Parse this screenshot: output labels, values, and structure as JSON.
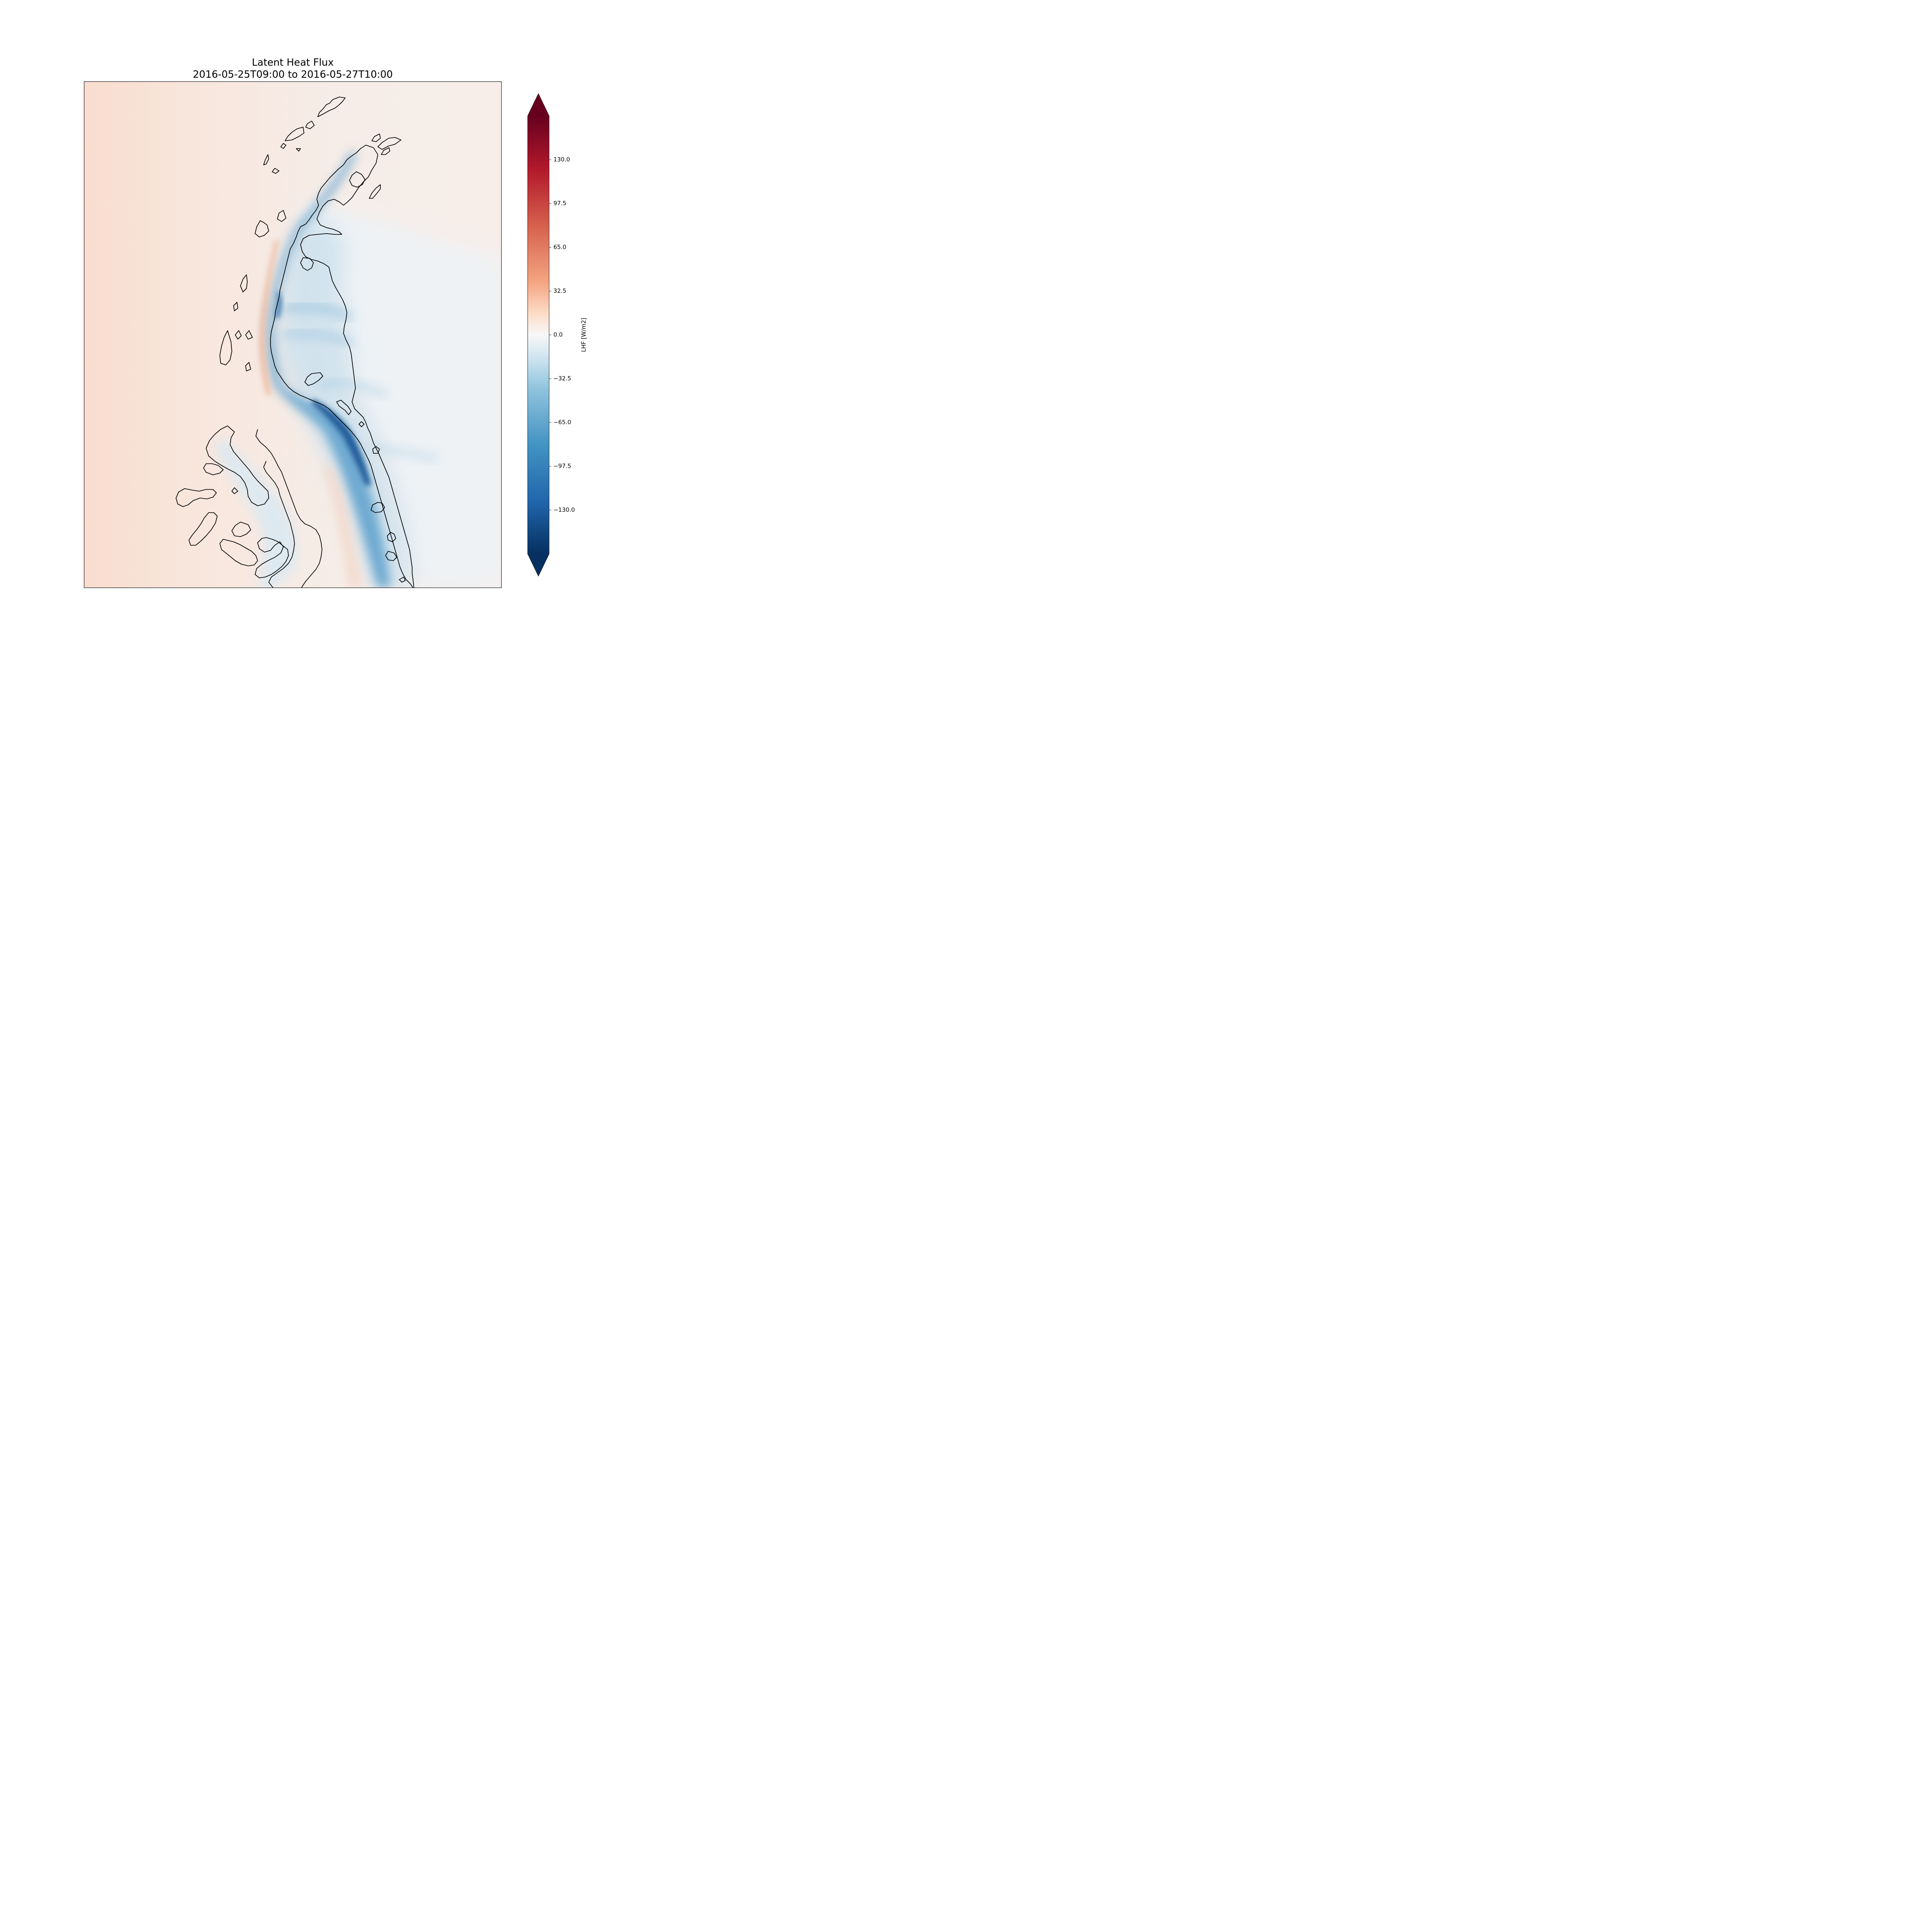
{
  "title": {
    "line1": "Latent Heat Flux",
    "line2": "2016-05-25T09:00 to 2016-05-27T10:00"
  },
  "colorbar": {
    "label": "LHF [W/m2]",
    "colormap": "RdBu_r",
    "range": [
      -162.5,
      162.5
    ],
    "extend": "both",
    "ticks": [
      {
        "value": 130.0,
        "label": "130.0"
      },
      {
        "value": 97.5,
        "label": "97.5"
      },
      {
        "value": 65.0,
        "label": "65.0"
      },
      {
        "value": 32.5,
        "label": "32.5"
      },
      {
        "value": 0.0,
        "label": "0.0"
      },
      {
        "value": -32.5,
        "label": "−32.5"
      },
      {
        "value": -65.0,
        "label": "−65.0"
      },
      {
        "value": -97.5,
        "label": "−97.5"
      },
      {
        "value": -130.0,
        "label": "−130.0"
      }
    ],
    "colors": {
      "max": "#67001f",
      "high": "#b2182b",
      "mid_high": "#f4a582",
      "zero": "#f7f7f7",
      "mid_low": "#92c5de",
      "low": "#2166ac",
      "min": "#053061"
    }
  },
  "map": {
    "region": "Antarctic Peninsula",
    "background_value": "slightly positive (pale orange) over ocean/west",
    "features": [
      "coastline outline",
      "strong negative LHF (blue) along eastern lee of peninsula"
    ]
  }
}
